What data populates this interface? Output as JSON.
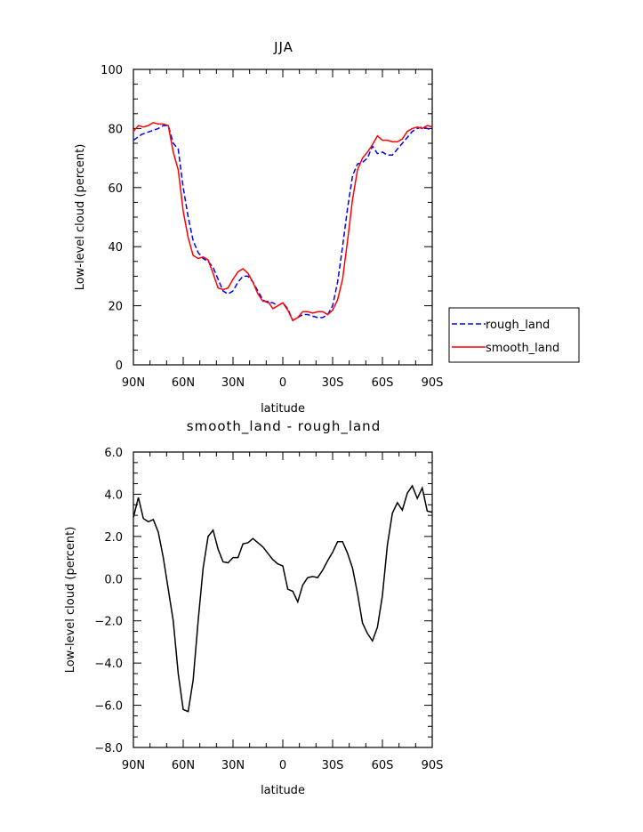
{
  "chart_data": [
    {
      "type": "line",
      "title": "JJA",
      "xlabel": "latitude",
      "ylabel": "Low-level cloud (percent)",
      "xlim": [
        90,
        -90
      ],
      "ylim": [
        0,
        100
      ],
      "x_ticks": [
        90,
        60,
        30,
        0,
        -30,
        -60,
        -90
      ],
      "x_tick_labels": [
        "90N",
        "60N",
        "30N",
        "0",
        "30S",
        "60S",
        "90S"
      ],
      "y_ticks": [
        0,
        20,
        40,
        60,
        80,
        100
      ],
      "y_tick_labels": [
        "0",
        "20",
        "40",
        "60",
        "80",
        "100"
      ],
      "legend_position": "right",
      "series": [
        {
          "name": "rough_land",
          "color": "#0000ff",
          "dash": "dashed",
          "x": [
            90,
            85,
            80,
            75,
            72,
            69,
            66,
            63,
            60,
            57,
            54,
            51,
            48,
            45,
            42,
            39,
            36,
            33,
            30,
            27,
            24,
            21,
            18,
            15,
            12,
            9,
            6,
            3,
            0,
            -3,
            -6,
            -9,
            -12,
            -15,
            -18,
            -21,
            -24,
            -27,
            -30,
            -33,
            -36,
            -39,
            -42,
            -45,
            -48,
            -51,
            -54,
            -57,
            -60,
            -63,
            -66,
            -69,
            -72,
            -75,
            -78,
            -81,
            -84,
            -87,
            -90
          ],
          "y": [
            76,
            78,
            79,
            80,
            81,
            81,
            75,
            73,
            60,
            50,
            42,
            38,
            36,
            35,
            33,
            29,
            25,
            24,
            25,
            28,
            30,
            30,
            28,
            25,
            22,
            21,
            21,
            20,
            21,
            19,
            15,
            16,
            17,
            17,
            16.5,
            16,
            16,
            17,
            20,
            28,
            40,
            53,
            64,
            68,
            68.5,
            70,
            74,
            71.5,
            72,
            71,
            71,
            73,
            75,
            77,
            79,
            80,
            80.5,
            80,
            79.5
          ]
        },
        {
          "name": "smooth_land",
          "color": "#ff0000",
          "dash": "solid",
          "x": [
            90,
            87,
            84,
            81,
            78,
            75,
            72,
            69,
            66,
            63,
            60,
            57,
            54,
            51,
            48,
            45,
            42,
            39,
            36,
            33,
            30,
            27,
            24,
            21,
            18,
            15,
            12,
            9,
            6,
            3,
            0,
            -3,
            -6,
            -9,
            -12,
            -15,
            -18,
            -21,
            -24,
            -27,
            -30,
            -33,
            -36,
            -39,
            -42,
            -45,
            -48,
            -51,
            -54,
            -57,
            -60,
            -63,
            -66,
            -69,
            -72,
            -75,
            -78,
            -81,
            -84,
            -87,
            -90
          ],
          "y": [
            79,
            81,
            80.5,
            81,
            82,
            81.5,
            81.5,
            81,
            72,
            66,
            52,
            43,
            37,
            36,
            36.5,
            35.5,
            31,
            26,
            25.5,
            26,
            29,
            31.5,
            32.5,
            31,
            28,
            24,
            21.5,
            21.5,
            19,
            20,
            21,
            18.5,
            15,
            16,
            18,
            18,
            17.5,
            18,
            18,
            17,
            18.5,
            22,
            29,
            42,
            56,
            66,
            70,
            72,
            74.5,
            77.5,
            76,
            76,
            75.5,
            75.5,
            76.5,
            79,
            80,
            80.5,
            80,
            81,
            80.5
          ]
        }
      ]
    },
    {
      "type": "line",
      "title": "smooth_land - rough_land",
      "xlabel": "latitude",
      "ylabel": "Low-level cloud (percent)",
      "xlim": [
        90,
        -90
      ],
      "ylim": [
        -8,
        6
      ],
      "x_ticks": [
        90,
        60,
        30,
        0,
        -30,
        -60,
        -90
      ],
      "x_tick_labels": [
        "90N",
        "60N",
        "30N",
        "0",
        "30S",
        "60S",
        "90S"
      ],
      "y_ticks": [
        -8,
        -6,
        -4,
        -2,
        0,
        2,
        4,
        6
      ],
      "y_tick_labels": [
        "−8.0",
        "−6.0",
        "−4.0",
        "−2.0",
        "0.0",
        "2.0",
        "4.0",
        "6.0"
      ],
      "series": [
        {
          "color": "#000000",
          "x": [
            90,
            87,
            84,
            81,
            78,
            75,
            72,
            69,
            66,
            63,
            60,
            57,
            54,
            51,
            48,
            45,
            42,
            39,
            36,
            33,
            30,
            27,
            24,
            21,
            18,
            15,
            12,
            9,
            6,
            3,
            0,
            -3,
            -6,
            -9,
            -12,
            -15,
            -18,
            -21,
            -24,
            -27,
            -30,
            -33,
            -36,
            -39,
            -42,
            -45,
            -48,
            -51,
            -54,
            -57,
            -60,
            -63,
            -66,
            -69,
            -72,
            -75,
            -78,
            -81,
            -84,
            -87,
            -90
          ],
          "y": [
            2.9,
            3.85,
            2.85,
            2.7,
            2.8,
            2.2,
            1.0,
            -0.5,
            -2.0,
            -4.5,
            -6.2,
            -6.3,
            -4.8,
            -2.0,
            0.5,
            2.0,
            2.3,
            1.4,
            0.8,
            0.75,
            1.0,
            1.0,
            1.65,
            1.7,
            1.9,
            1.7,
            1.5,
            1.2,
            0.9,
            0.7,
            0.6,
            -0.5,
            -0.6,
            -1.1,
            -0.3,
            0.05,
            0.1,
            0.05,
            0.4,
            0.85,
            1.25,
            1.75,
            1.75,
            1.2,
            0.5,
            -0.7,
            -2.1,
            -2.6,
            -2.95,
            -2.3,
            -0.8,
            1.6,
            3.1,
            3.6,
            3.25,
            4.05,
            4.4,
            3.8,
            4.3,
            3.2,
            3.15
          ]
        }
      ]
    }
  ]
}
